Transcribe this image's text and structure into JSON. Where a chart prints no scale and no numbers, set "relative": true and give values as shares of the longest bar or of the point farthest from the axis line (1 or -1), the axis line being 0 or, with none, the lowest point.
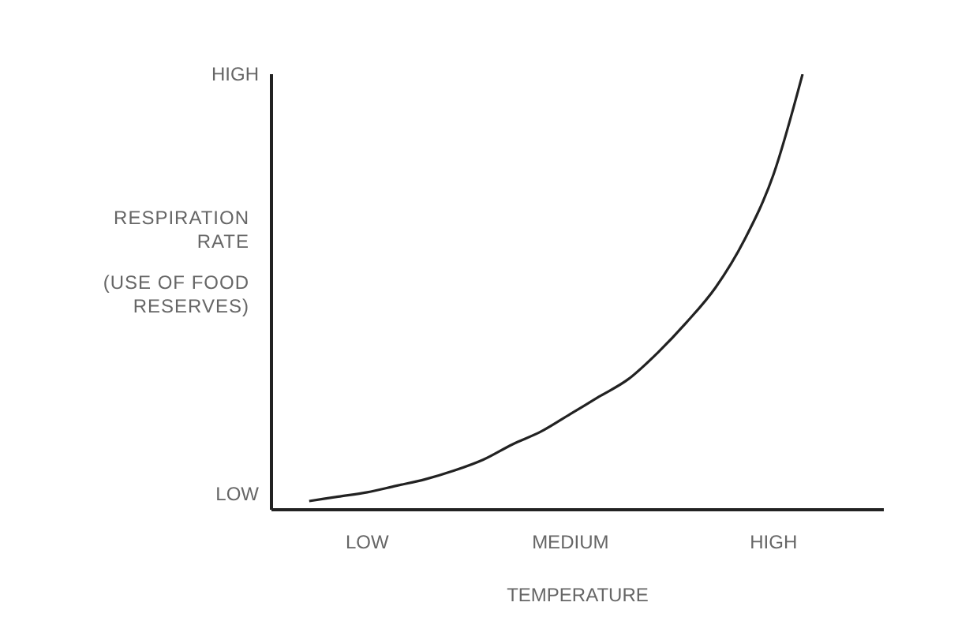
{
  "chart_data": {
    "type": "line",
    "relative": true,
    "xlabel": "TEMPERATURE",
    "ylabel": "RESPIRATION\nRATE\n(USE OF FOOD\nRESERVES)",
    "categories": [
      null,
      null,
      "LOW",
      null,
      null,
      null,
      null,
      null,
      null,
      "MEDIUM",
      null,
      null,
      null,
      null,
      null,
      null,
      "HIGH",
      null
    ],
    "annotations": [
      "HIGH",
      "LOW"
    ],
    "series": [
      {
        "color": "#222222",
        "values": [
          0.02,
          0.03,
          0.04,
          0.055,
          0.07,
          0.09,
          0.115,
          0.15,
          0.18,
          0.22,
          0.26,
          0.3,
          0.36,
          0.43,
          0.51,
          0.62,
          0.77,
          1.0
        ]
      }
    ],
    "marker": "none",
    "grid": false,
    "legend": false
  }
}
